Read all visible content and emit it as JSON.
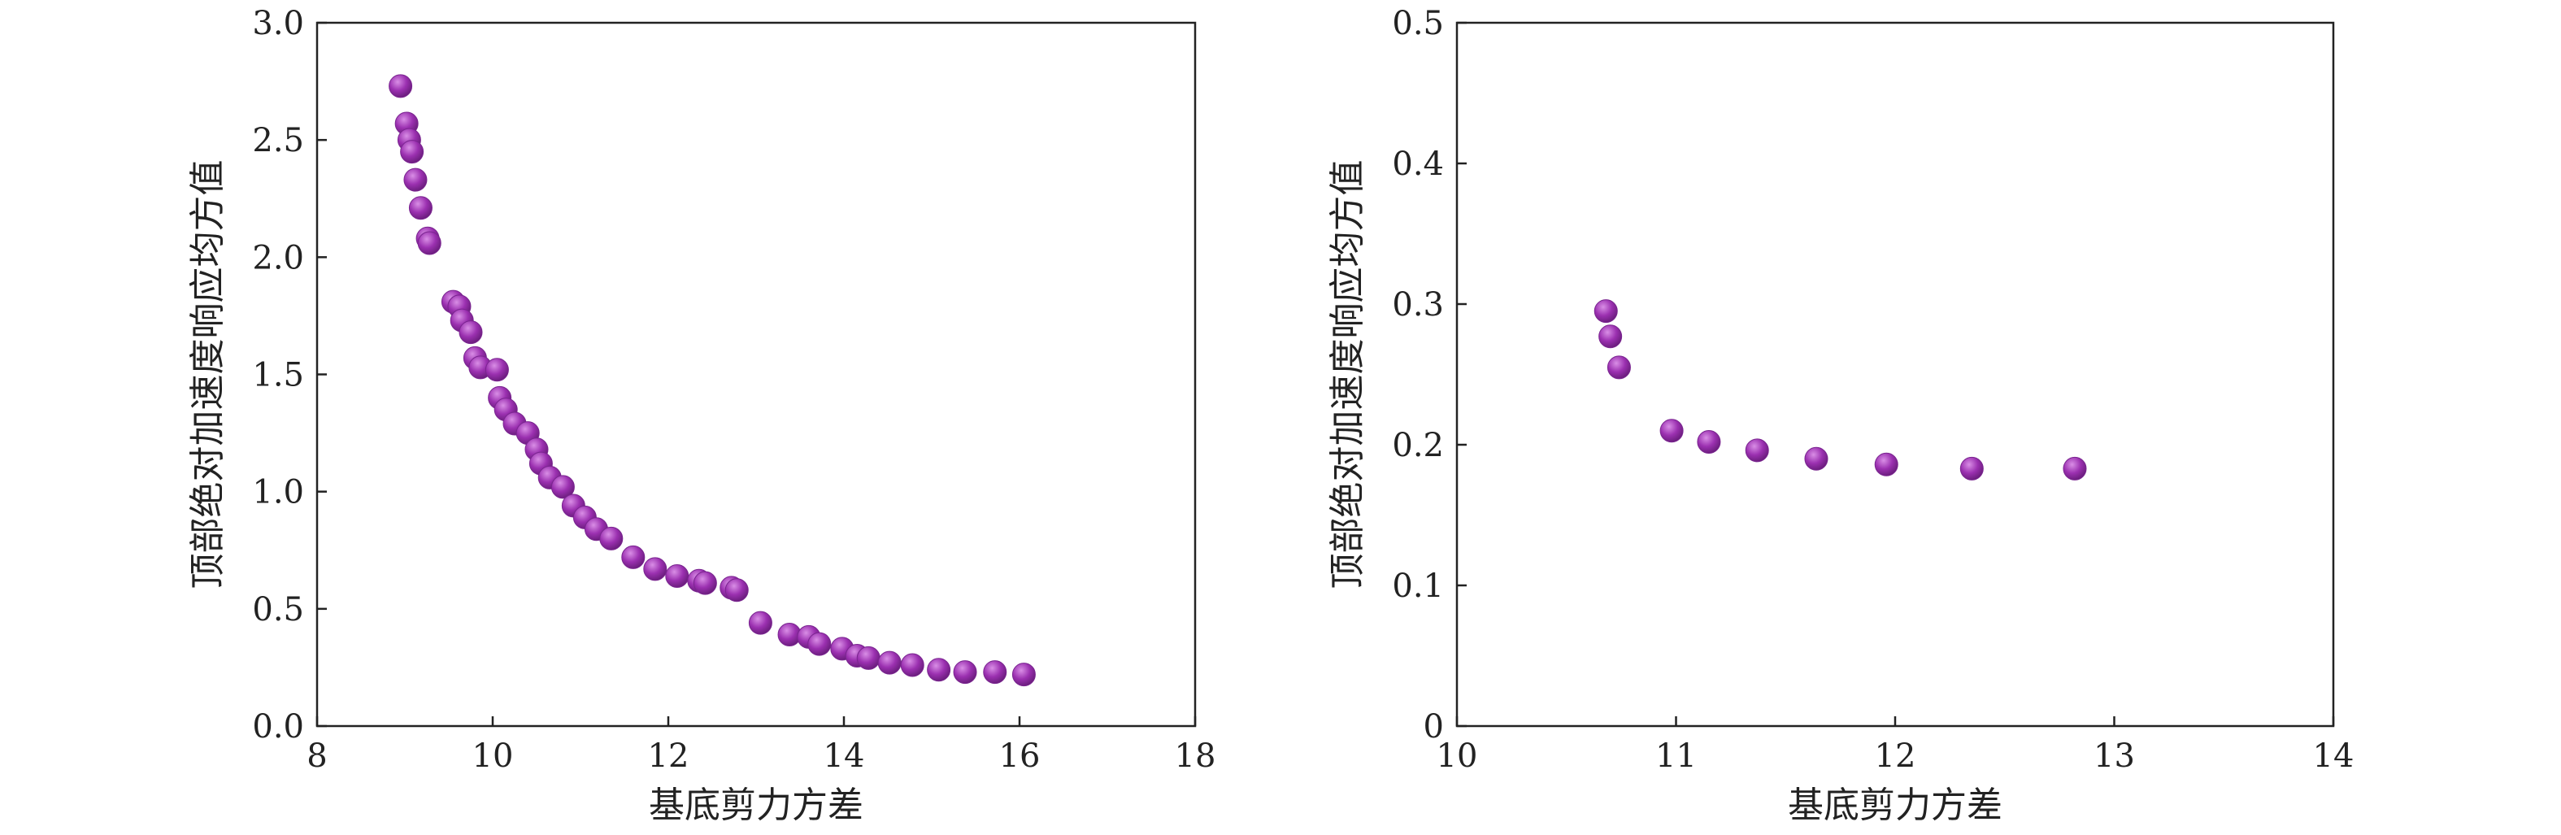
{
  "colors": {
    "marker": "#9b30b0",
    "marker_highlight": "#d98ee6",
    "axis": "#222222",
    "background": "#ffffff"
  },
  "chart_data": [
    {
      "type": "scatter",
      "xlabel": "基底剪力方差",
      "ylabel": "顶部绝对加速度响应均方值",
      "xlim": [
        8,
        18
      ],
      "ylim": [
        0.0,
        3.0
      ],
      "xticks": [
        8,
        10,
        12,
        14,
        16,
        18
      ],
      "xtick_labels": [
        "8",
        "10",
        "12",
        "14",
        "16",
        "18"
      ],
      "yticks": [
        0.0,
        0.5,
        1.0,
        1.5,
        2.0,
        2.5,
        3.0
      ],
      "ytick_labels": [
        "0.0",
        "0.5",
        "1.0",
        "1.5",
        "2.0",
        "2.5",
        "3.0"
      ],
      "grid": false,
      "points": [
        [
          8.95,
          2.73
        ],
        [
          9.02,
          2.57
        ],
        [
          9.05,
          2.5
        ],
        [
          9.08,
          2.45
        ],
        [
          9.12,
          2.33
        ],
        [
          9.18,
          2.21
        ],
        [
          9.26,
          2.08
        ],
        [
          9.28,
          2.06
        ],
        [
          9.55,
          1.81
        ],
        [
          9.62,
          1.79
        ],
        [
          9.65,
          1.73
        ],
        [
          9.75,
          1.68
        ],
        [
          9.8,
          1.57
        ],
        [
          9.86,
          1.53
        ],
        [
          10.05,
          1.52
        ],
        [
          10.08,
          1.4
        ],
        [
          10.15,
          1.35
        ],
        [
          10.25,
          1.29
        ],
        [
          10.4,
          1.25
        ],
        [
          10.5,
          1.18
        ],
        [
          10.55,
          1.12
        ],
        [
          10.65,
          1.06
        ],
        [
          10.8,
          1.02
        ],
        [
          10.92,
          0.94
        ],
        [
          11.05,
          0.89
        ],
        [
          11.18,
          0.84
        ],
        [
          11.35,
          0.8
        ],
        [
          11.6,
          0.72
        ],
        [
          11.85,
          0.67
        ],
        [
          12.1,
          0.64
        ],
        [
          12.35,
          0.62
        ],
        [
          12.42,
          0.61
        ],
        [
          12.72,
          0.59
        ],
        [
          12.78,
          0.58
        ],
        [
          13.05,
          0.44
        ],
        [
          13.38,
          0.39
        ],
        [
          13.6,
          0.38
        ],
        [
          13.72,
          0.35
        ],
        [
          13.98,
          0.33
        ],
        [
          14.15,
          0.3
        ],
        [
          14.28,
          0.29
        ],
        [
          14.52,
          0.27
        ],
        [
          14.78,
          0.26
        ],
        [
          15.08,
          0.24
        ],
        [
          15.38,
          0.23
        ],
        [
          15.72,
          0.23
        ],
        [
          16.05,
          0.22
        ]
      ]
    },
    {
      "type": "scatter",
      "xlabel": "基底剪力方差",
      "ylabel": "顶部绝对加速度响应均方值",
      "xlim": [
        10,
        14
      ],
      "ylim": [
        0,
        0.5
      ],
      "xticks": [
        10,
        11,
        12,
        13,
        14
      ],
      "xtick_labels": [
        "10",
        "11",
        "12",
        "13",
        "14"
      ],
      "yticks": [
        0,
        0.1,
        0.2,
        0.3,
        0.4,
        0.5
      ],
      "ytick_labels": [
        "0",
        "0.1",
        "0.2",
        "0.3",
        "0.4",
        "0.5"
      ],
      "grid": false,
      "points": [
        [
          10.68,
          0.295
        ],
        [
          10.7,
          0.277
        ],
        [
          10.74,
          0.255
        ],
        [
          10.98,
          0.21
        ],
        [
          11.15,
          0.202
        ],
        [
          11.37,
          0.196
        ],
        [
          11.64,
          0.19
        ],
        [
          11.96,
          0.186
        ],
        [
          12.35,
          0.183
        ],
        [
          12.82,
          0.183
        ]
      ]
    }
  ]
}
